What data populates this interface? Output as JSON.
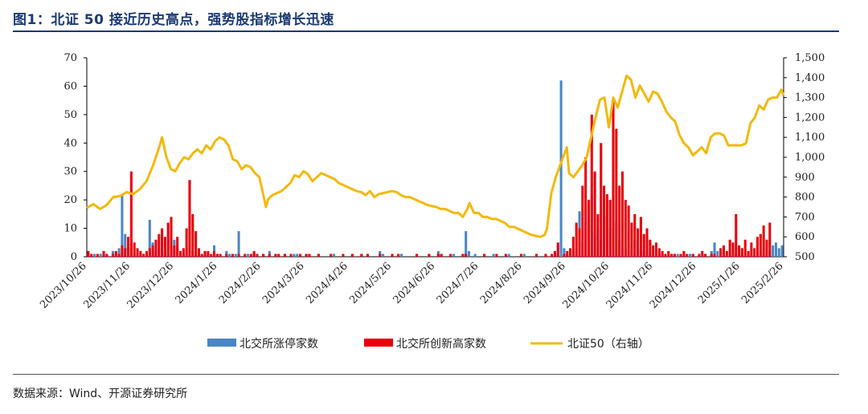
{
  "title": "图1：北证 50 接近历史高点，强势股指标增长迅速",
  "source": "数据来源：Wind、开源证券研究所",
  "colors": {
    "limit_up": "#4a86c5",
    "new_high": "#e8000b",
    "bz50": "#f2b90f",
    "title": "#1a3a73"
  },
  "chart_data": {
    "type": "bar+line",
    "x_tick_labels": [
      "2023/10/26",
      "2023/11/26",
      "2023/12/26",
      "2024/1/26",
      "2024/2/26",
      "2024/3/26",
      "2024/4/26",
      "2024/5/26",
      "2024/6/26",
      "2024/7/26",
      "2024/8/26",
      "2024/9/26",
      "2024/10/26",
      "2024/11/26",
      "2024/12/26",
      "2025/1/26",
      "2025/2/26"
    ],
    "y_left": {
      "min": 0,
      "max": 70,
      "ticks": [
        0,
        10,
        20,
        30,
        40,
        50,
        60,
        70
      ]
    },
    "y_right": {
      "min": 500,
      "max": 1500,
      "ticks": [
        "500",
        "600",
        "700",
        "800",
        "900",
        "1,000",
        "1,100",
        "1,200",
        "1,300",
        "1,400",
        "1,500"
      ]
    },
    "legend": {
      "placement": "bottom"
    },
    "series": [
      {
        "name": "北交所涨停家数",
        "axis": "left",
        "kind": "bar",
        "values": [
          1,
          0,
          1,
          0,
          1,
          2,
          1,
          0,
          2,
          1,
          3,
          22,
          8,
          5,
          3,
          1,
          2,
          1,
          0,
          1,
          13,
          5,
          2,
          3,
          1,
          2,
          1,
          3,
          6,
          4,
          2,
          1,
          3,
          4,
          2,
          1,
          1,
          0,
          2,
          1,
          0,
          4,
          1,
          0,
          0,
          2,
          1,
          0,
          1,
          9,
          0,
          0,
          1,
          0,
          1,
          0,
          0,
          1,
          0,
          2,
          0,
          1,
          0,
          0,
          1,
          0,
          0,
          1,
          1,
          0,
          0,
          1,
          0,
          0,
          0,
          1,
          0,
          0,
          0,
          0,
          1,
          0,
          0,
          0,
          0,
          0,
          1,
          0,
          0,
          1,
          0,
          1,
          0,
          0,
          0,
          2,
          1,
          0,
          0,
          1,
          0,
          0,
          1,
          0,
          0,
          0,
          0,
          1,
          0,
          0,
          0,
          1,
          0,
          0,
          2,
          1,
          0,
          0,
          0,
          1,
          0,
          0,
          1,
          9,
          2,
          0,
          1,
          0,
          0,
          0,
          0,
          0,
          1,
          0,
          0,
          0,
          0,
          1,
          0,
          0,
          0,
          0,
          1,
          0,
          0,
          0,
          0,
          0,
          0,
          1,
          0,
          0,
          2,
          4,
          62,
          3,
          1,
          0,
          2,
          3,
          16,
          5,
          12,
          18,
          22,
          8,
          10,
          6,
          15,
          14,
          10,
          8,
          12,
          6,
          5,
          3,
          2,
          4,
          6,
          3,
          2,
          2,
          1,
          1,
          0,
          0,
          1,
          1,
          0,
          0,
          0,
          1,
          1,
          0,
          0,
          0,
          1,
          1,
          0,
          0,
          0,
          1,
          0,
          2,
          5,
          2,
          3,
          1,
          0,
          1,
          0,
          1,
          0,
          2,
          0,
          1,
          1,
          0,
          0,
          2,
          1,
          3,
          2,
          4,
          5,
          3,
          4
        ]
      },
      {
        "name": "北交所创新高家数",
        "axis": "left",
        "kind": "bar",
        "values": [
          2,
          1,
          0,
          1,
          0,
          2,
          1,
          0,
          1,
          2,
          1,
          4,
          3,
          7,
          30,
          5,
          3,
          2,
          1,
          2,
          3,
          4,
          6,
          8,
          10,
          7,
          12,
          14,
          4,
          7,
          2,
          3,
          10,
          27,
          15,
          9,
          3,
          1,
          2,
          2,
          1,
          2,
          1,
          1,
          0,
          1,
          0,
          1,
          0,
          1,
          0,
          1,
          0,
          1,
          2,
          1,
          0,
          1,
          0,
          1,
          0,
          1,
          1,
          0,
          1,
          0,
          1,
          0,
          0,
          1,
          0,
          1,
          1,
          0,
          0,
          1,
          0,
          0,
          0,
          1,
          0,
          0,
          0,
          1,
          0,
          0,
          1,
          0,
          0,
          1,
          0,
          1,
          0,
          0,
          0,
          1,
          0,
          0,
          0,
          1,
          0,
          1,
          0,
          0,
          0,
          0,
          0,
          1,
          0,
          0,
          0,
          1,
          0,
          0,
          1,
          1,
          0,
          0,
          1,
          0,
          0,
          0,
          1,
          1,
          0,
          0,
          0,
          0,
          0,
          1,
          0,
          0,
          0,
          1,
          0,
          0,
          1,
          0,
          0,
          0,
          0,
          1,
          0,
          0,
          0,
          0,
          1,
          0,
          0,
          1,
          0,
          1,
          2,
          5,
          0,
          1,
          2,
          3,
          7,
          12,
          10,
          25,
          35,
          20,
          50,
          30,
          15,
          40,
          25,
          22,
          20,
          55,
          45,
          25,
          30,
          20,
          18,
          12,
          15,
          10,
          14,
          8,
          10,
          6,
          4,
          5,
          3,
          2,
          1,
          2,
          1,
          1,
          0,
          1,
          2,
          1,
          0,
          1,
          0,
          1,
          2,
          1,
          0,
          1,
          1,
          0,
          3,
          4,
          2,
          6,
          5,
          15,
          4,
          3,
          6,
          2,
          5,
          3,
          7,
          8,
          11,
          6,
          12
        ]
      },
      {
        "name": "北证50（右轴）",
        "axis": "right",
        "kind": "line",
        "points": [
          [
            0,
            745
          ],
          [
            3,
            765
          ],
          [
            6,
            740
          ],
          [
            9,
            760
          ],
          [
            12,
            800
          ],
          [
            15,
            805
          ],
          [
            18,
            825
          ],
          [
            21,
            815
          ],
          [
            24,
            840
          ],
          [
            27,
            880
          ],
          [
            30,
            960
          ],
          [
            33,
            1060
          ],
          [
            34,
            1100
          ],
          [
            36,
            1000
          ],
          [
            38,
            940
          ],
          [
            40,
            930
          ],
          [
            42,
            970
          ],
          [
            44,
            1000
          ],
          [
            46,
            990
          ],
          [
            48,
            1020
          ],
          [
            50,
            1040
          ],
          [
            52,
            1020
          ],
          [
            54,
            1060
          ],
          [
            56,
            1040
          ],
          [
            58,
            1080
          ],
          [
            60,
            1100
          ],
          [
            62,
            1090
          ],
          [
            64,
            1060
          ],
          [
            66,
            990
          ],
          [
            68,
            980
          ],
          [
            70,
            940
          ],
          [
            72,
            960
          ],
          [
            74,
            950
          ],
          [
            76,
            920
          ],
          [
            78,
            900
          ],
          [
            80,
            800
          ],
          [
            81,
            750
          ],
          [
            82,
            790
          ],
          [
            84,
            810
          ],
          [
            86,
            820
          ],
          [
            88,
            830
          ],
          [
            90,
            850
          ],
          [
            92,
            870
          ],
          [
            94,
            910
          ],
          [
            96,
            900
          ],
          [
            98,
            930
          ],
          [
            100,
            915
          ],
          [
            102,
            880
          ],
          [
            104,
            900
          ],
          [
            106,
            920
          ],
          [
            108,
            910
          ],
          [
            110,
            900
          ],
          [
            112,
            890
          ],
          [
            114,
            870
          ],
          [
            116,
            860
          ],
          [
            118,
            850
          ],
          [
            120,
            840
          ],
          [
            122,
            830
          ],
          [
            124,
            825
          ],
          [
            126,
            810
          ],
          [
            128,
            830
          ],
          [
            130,
            800
          ],
          [
            132,
            815
          ],
          [
            134,
            820
          ],
          [
            136,
            825
          ],
          [
            138,
            830
          ],
          [
            140,
            825
          ],
          [
            142,
            810
          ],
          [
            144,
            800
          ],
          [
            146,
            800
          ],
          [
            148,
            790
          ],
          [
            150,
            780
          ],
          [
            152,
            770
          ],
          [
            154,
            760
          ],
          [
            156,
            755
          ],
          [
            158,
            750
          ],
          [
            160,
            740
          ],
          [
            162,
            740
          ],
          [
            164,
            730
          ],
          [
            166,
            720
          ],
          [
            168,
            720
          ],
          [
            170,
            700
          ],
          [
            172,
            740
          ],
          [
            173,
            770
          ],
          [
            175,
            720
          ],
          [
            177,
            720
          ],
          [
            179,
            700
          ],
          [
            181,
            700
          ],
          [
            183,
            690
          ],
          [
            185,
            690
          ],
          [
            187,
            680
          ],
          [
            189,
            670
          ],
          [
            191,
            650
          ],
          [
            193,
            650
          ],
          [
            195,
            640
          ],
          [
            197,
            630
          ],
          [
            199,
            620
          ],
          [
            201,
            610
          ],
          [
            203,
            605
          ],
          [
            205,
            600
          ],
          [
            207,
            610
          ],
          [
            208,
            640
          ],
          [
            210,
            820
          ],
          [
            212,
            900
          ],
          [
            214,
            960
          ],
          [
            216,
            1020
          ],
          [
            217,
            1050
          ],
          [
            218,
            920
          ],
          [
            220,
            900
          ],
          [
            222,
            930
          ],
          [
            224,
            960
          ],
          [
            226,
            1000
          ],
          [
            228,
            1100
          ],
          [
            230,
            1200
          ],
          [
            232,
            1290
          ],
          [
            234,
            1300
          ],
          [
            236,
            1150
          ],
          [
            238,
            1300
          ],
          [
            240,
            1250
          ],
          [
            242,
            1330
          ],
          [
            244,
            1410
          ],
          [
            246,
            1390
          ],
          [
            248,
            1300
          ],
          [
            250,
            1360
          ],
          [
            252,
            1320
          ],
          [
            254,
            1280
          ],
          [
            256,
            1330
          ],
          [
            258,
            1320
          ],
          [
            260,
            1280
          ],
          [
            262,
            1230
          ],
          [
            264,
            1200
          ],
          [
            266,
            1180
          ],
          [
            268,
            1110
          ],
          [
            270,
            1070
          ],
          [
            272,
            1050
          ],
          [
            274,
            1010
          ],
          [
            276,
            1030
          ],
          [
            278,
            1050
          ],
          [
            280,
            1020
          ],
          [
            282,
            1100
          ],
          [
            284,
            1120
          ],
          [
            286,
            1120
          ],
          [
            288,
            1110
          ],
          [
            290,
            1060
          ],
          [
            292,
            1060
          ],
          [
            294,
            1060
          ],
          [
            296,
            1060
          ],
          [
            298,
            1070
          ],
          [
            300,
            1170
          ],
          [
            302,
            1200
          ],
          [
            304,
            1260
          ],
          [
            306,
            1240
          ],
          [
            308,
            1290
          ],
          [
            310,
            1300
          ],
          [
            312,
            1300
          ],
          [
            314,
            1340
          ],
          [
            315,
            1310
          ]
        ]
      }
    ]
  }
}
